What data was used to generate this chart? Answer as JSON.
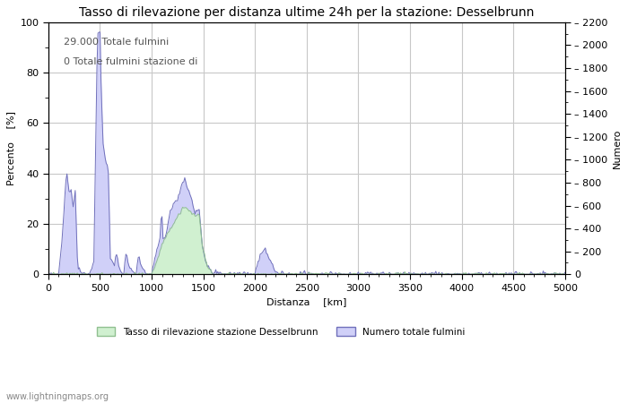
{
  "title": "Tasso di rilevazione per distanza ultime 24h per la stazione: Desselbrunn",
  "xlabel": "Distanza  [km]",
  "ylabel_left": "Percento  [%]",
  "ylabel_right": "Numero",
  "annotation_line1": "29.000 Totale fulmini",
  "annotation_line2": "0 Totale fulmini stazione di",
  "watermark": "www.lightningmaps.org",
  "legend_green": "Tasso di rilevazione stazione Desselbrunn",
  "legend_blue": "Numero totale fulmini",
  "xlim": [
    0,
    5000
  ],
  "ylim_left": [
    0,
    100
  ],
  "ylim_right": [
    0,
    2200
  ],
  "xticks": [
    0,
    500,
    1000,
    1500,
    2000,
    2500,
    3000,
    3500,
    4000,
    4500,
    5000
  ],
  "yticks_left": [
    0,
    20,
    40,
    60,
    80,
    100
  ],
  "yticks_right": [
    0,
    200,
    400,
    600,
    800,
    1000,
    1200,
    1400,
    1600,
    1800,
    2000,
    2200
  ],
  "bg_color": "#ffffff",
  "grid_color": "#c8c8c8",
  "fill_blue_color": "#d0d0f8",
  "fill_blue_edge": "#7070bb",
  "fill_green_color": "#d0f0d0",
  "fill_green_edge": "#90c090",
  "title_fontsize": 10,
  "axis_label_fontsize": 8,
  "tick_fontsize": 8,
  "annotation_fontsize": 8
}
